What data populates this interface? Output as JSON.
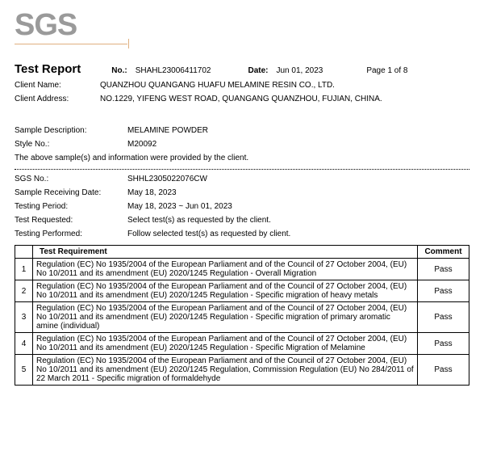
{
  "logo_text": "SGS",
  "title": "Test Report",
  "header": {
    "no_label": "No.:",
    "no_value": "SHAHL23006411702",
    "date_label": "Date:",
    "date_value": "Jun 01, 2023",
    "page_text": "Page 1 of 8"
  },
  "client": {
    "name_label": "Client Name:",
    "name_value": "QUANZHOU QUANGANG HUAFU MELAMINE RESIN CO., LTD.",
    "addr_label": "Client Address:",
    "addr_value": "NO.1229, YIFENG WEST ROAD, QUANGANG QUANZHOU, FUJIAN, CHINA."
  },
  "sample": {
    "desc_label": "Sample Description:",
    "desc_value": "MELAMINE POWDER",
    "style_label": "Style No.:",
    "style_value": "M20092",
    "note": "The above sample(s) and information were provided by the client."
  },
  "meta": {
    "sgs_label": "SGS No.:",
    "sgs_value": "SHHL2305022076CW",
    "recv_label": "Sample Receiving Date:",
    "recv_value": "May 18, 2023",
    "period_label": "Testing Period:",
    "period_value": "May 18, 2023 ~ Jun 01, 2023",
    "requested_label": "Test Requested:",
    "requested_value": "Select test(s) as requested by the client.",
    "performed_label": "Testing Performed:",
    "performed_value": "Follow selected test(s) as requested by client."
  },
  "table": {
    "col_req": "Test Requirement",
    "col_comment": "Comment",
    "rows": [
      {
        "n": "1",
        "req": "Regulation (EC) No 1935/2004 of the European Parliament and of the Council of 27 October 2004, (EU) No 10/2011 and its amendment (EU) 2020/1245 Regulation - Overall Migration",
        "comment": "Pass"
      },
      {
        "n": "2",
        "req": "Regulation (EC) No 1935/2004 of the European Parliament and of the Council of 27 October 2004, (EU) No 10/2011 and its amendment (EU) 2020/1245 Regulation - Specific migration of heavy metals",
        "comment": "Pass"
      },
      {
        "n": "3",
        "req": "Regulation (EC) No 1935/2004 of the European Parliament and of the Council of 27 October 2004, (EU) No 10/2011 and its amendment (EU) 2020/1245 Regulation - Specific migration of primary aromatic amine (individual)",
        "comment": "Pass"
      },
      {
        "n": "4",
        "req": "Regulation (EC) No 1935/2004 of the European Parliament and of the Council of 27 October 2004, (EU) No 10/2011 and its amendment (EU) 2020/1245 Regulation - Specific Migration of Melamine",
        "comment": "Pass"
      },
      {
        "n": "5",
        "req": "Regulation (EC) No 1935/2004 of the European Parliament and of the Council of 27 October 2004, (EU) No 10/2011 and its amendment (EU) 2020/1245 Regulation, Commission Regulation (EU) No 284/2011 of 22 March 2011 - Specific migration of formaldehyde",
        "comment": "Pass"
      }
    ]
  }
}
